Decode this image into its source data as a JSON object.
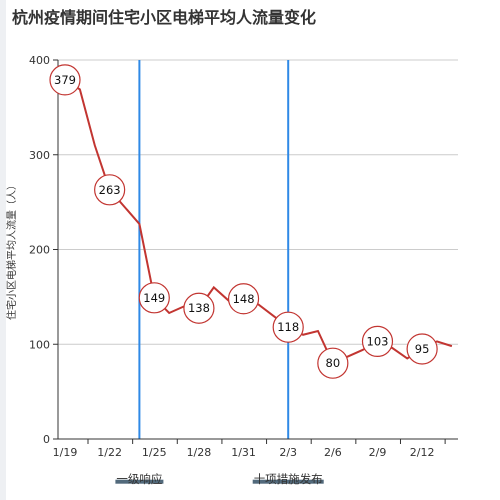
{
  "chart_data": {
    "type": "line",
    "title": "杭州疫情期间住宅小区电梯平均人流量变化",
    "ylabel": "住宅小区电梯平均人流量（人）",
    "xlabel": "",
    "ylim": [
      0,
      400
    ],
    "yticks": [
      0,
      100,
      200,
      300,
      400
    ],
    "grid": true,
    "x_tick_labels": [
      "1/19",
      "1/22",
      "1/25",
      "1/28",
      "1/31",
      "2/3",
      "2/6",
      "2/9",
      "2/12"
    ],
    "dates": [
      "1/19",
      "1/20",
      "1/21",
      "1/22",
      "1/23",
      "1/24",
      "1/25",
      "1/26",
      "1/27",
      "1/28",
      "1/29",
      "1/30",
      "1/31",
      "2/1",
      "2/2",
      "2/3",
      "2/4",
      "2/5",
      "2/6",
      "2/7",
      "2/8",
      "2/9",
      "2/10",
      "2/11",
      "2/12",
      "2/13",
      "2/14"
    ],
    "series": [
      {
        "name": "",
        "values": [
          379,
          369,
          310,
          263,
          245,
          227,
          149,
          133,
          140,
          138,
          160,
          146,
          148,
          142,
          130,
          118,
          110,
          114,
          80,
          87,
          94,
          103,
          96,
          85,
          95,
          103,
          98
        ]
      }
    ],
    "labeled_points": [
      {
        "date": "1/19",
        "value": 379,
        "label": "379"
      },
      {
        "date": "1/22",
        "value": 263,
        "label": "263"
      },
      {
        "date": "1/25",
        "value": 149,
        "label": "149"
      },
      {
        "date": "1/28",
        "value": 138,
        "label": "138"
      },
      {
        "date": "1/31",
        "value": 148,
        "label": "148"
      },
      {
        "date": "2/3",
        "value": 118,
        "label": "118"
      },
      {
        "date": "2/6",
        "value": 80,
        "label": "80"
      },
      {
        "date": "2/9",
        "value": 103,
        "label": "103"
      },
      {
        "date": "2/12",
        "value": 95,
        "label": "95"
      }
    ],
    "events": [
      {
        "date": "1/24",
        "label": "一级响应"
      },
      {
        "date": "2/3",
        "label": "十项措施发布"
      }
    ],
    "colors": {
      "line": "#c23531",
      "event_line": "#2f89e6",
      "grid": "#cccccc",
      "axis": "#333333",
      "event_label_bg": "#3f5a6e"
    }
  }
}
